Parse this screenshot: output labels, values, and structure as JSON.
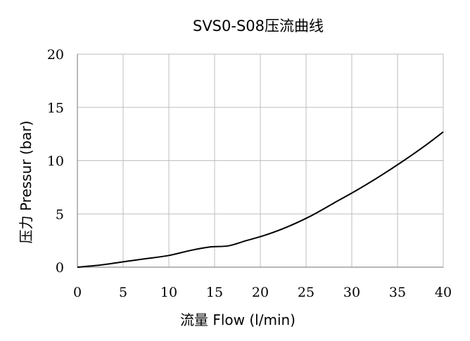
{
  "chart_data": {
    "type": "line",
    "title": "SVS0-S08压流曲线",
    "xlabel": "流量 Flow (l/min)",
    "ylabel": "压力 Pressur (bar)",
    "xlim": [
      0,
      40
    ],
    "ylim": [
      0,
      20
    ],
    "xticks": [
      "0",
      "5",
      "10",
      "15",
      "20",
      "25",
      "30",
      "35",
      "40"
    ],
    "yticks": [
      "0",
      "5",
      "10",
      "15",
      "20"
    ],
    "grid": true,
    "series": [
      {
        "color": "#000000",
        "x": [
          0,
          2.5,
          5,
          7.5,
          10,
          12.5,
          14.5,
          16.5,
          18.5,
          20.5,
          23,
          25.5,
          28,
          30.5,
          33,
          35.5,
          38,
          40
        ],
        "y": [
          0,
          0.2,
          0.5,
          0.8,
          1.1,
          1.6,
          1.9,
          2.0,
          2.5,
          3.0,
          3.8,
          4.8,
          6.0,
          7.2,
          8.5,
          9.9,
          11.4,
          12.7
        ]
      }
    ]
  }
}
